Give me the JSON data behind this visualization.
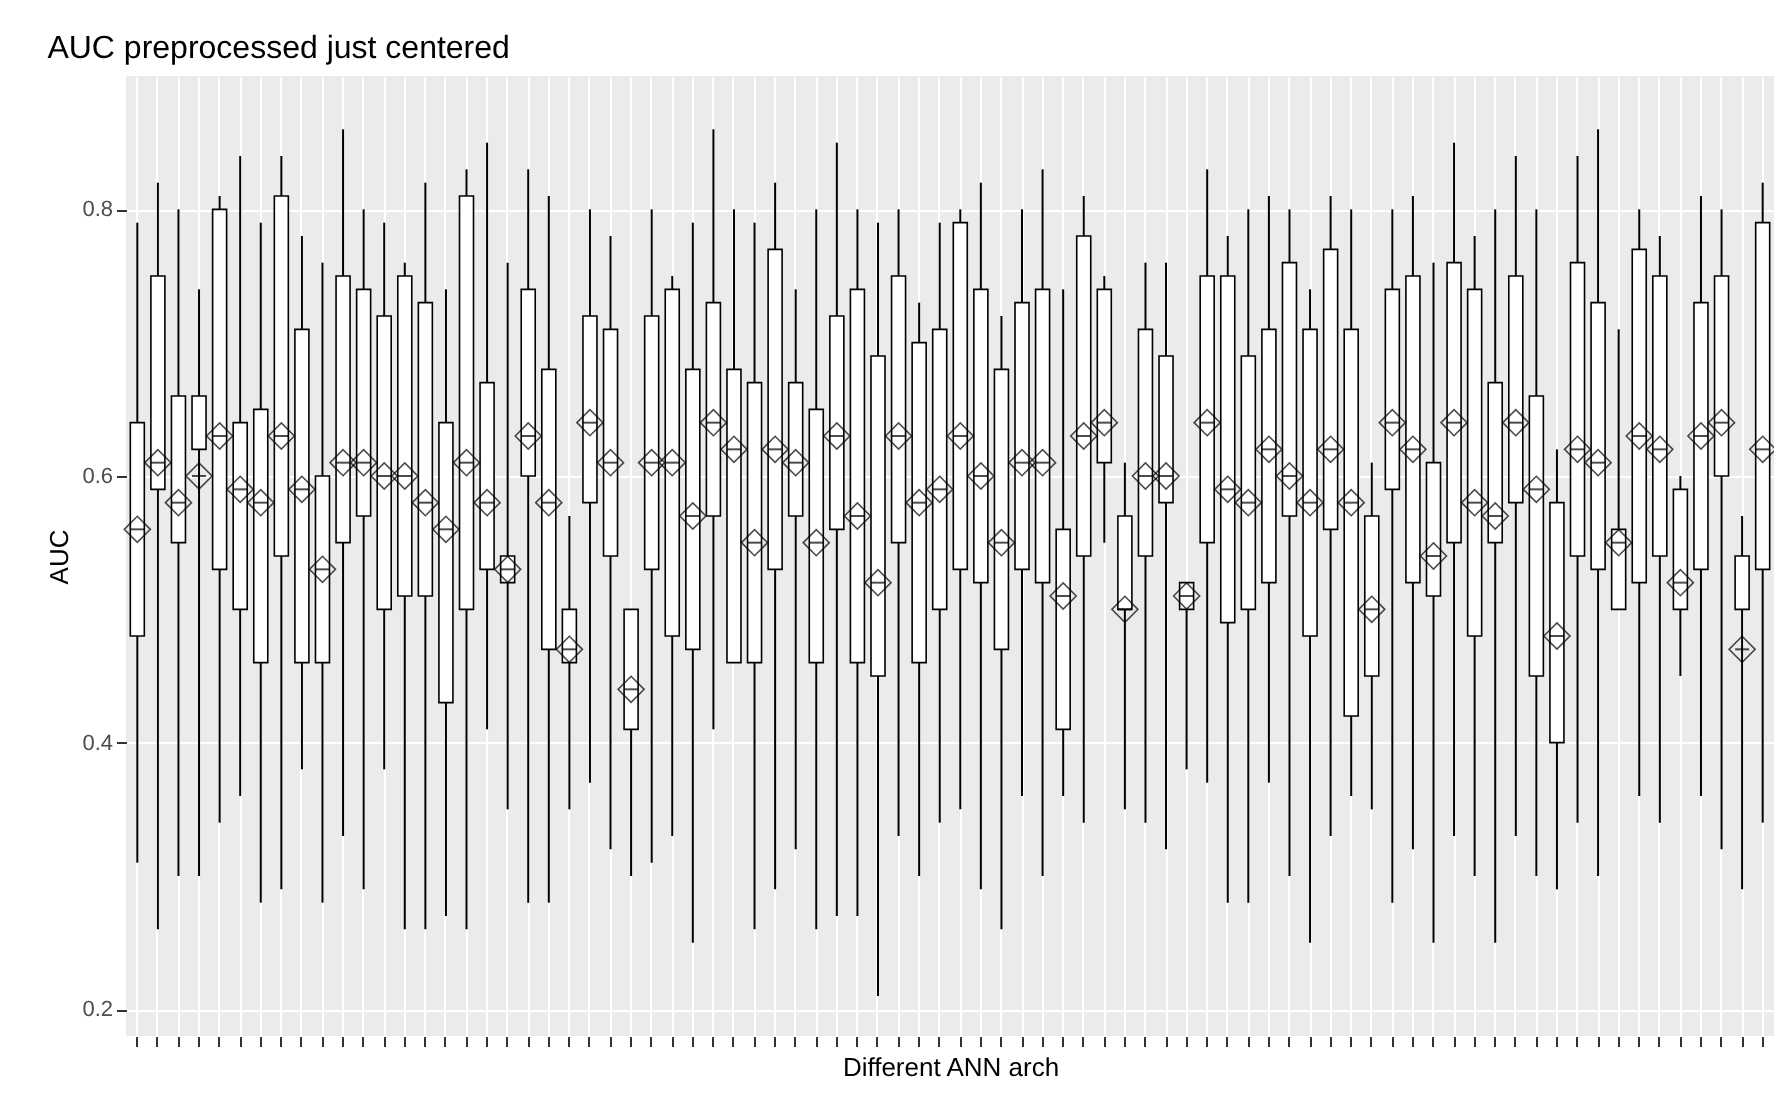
{
  "chart_data": {
    "type": "box",
    "title": "AUC preprocessed just centered",
    "xlabel": "Different ANN arch",
    "ylabel": "AUC",
    "categories": [
      null,
      null,
      null,
      null,
      null,
      null,
      null,
      null,
      null,
      null,
      null,
      null,
      null,
      null,
      null,
      null,
      null,
      null,
      null,
      null,
      null,
      null,
      null,
      null,
      null,
      null,
      null,
      null,
      null,
      null,
      null,
      null,
      null,
      null,
      null,
      null,
      null,
      null,
      null,
      null,
      null,
      null,
      null,
      null,
      null,
      null,
      null,
      null,
      null,
      null,
      null,
      null,
      null,
      null,
      null,
      null,
      null,
      null,
      null,
      null,
      null,
      null,
      null,
      null,
      null,
      null,
      null,
      null,
      null,
      null,
      null,
      null,
      null,
      null,
      null,
      null,
      null,
      null,
      null,
      null
    ],
    "color": "#000000",
    "ylim": [
      0.18,
      0.9
    ],
    "yticks": [
      0.2,
      0.4,
      0.6,
      0.8
    ],
    "grid": true,
    "marker": "diamond",
    "boxes": [
      {
        "low": 0.31,
        "q1": 0.48,
        "median": 0.56,
        "q3": 0.64,
        "high": 0.79,
        "mean": 0.56
      },
      {
        "low": 0.26,
        "q1": 0.59,
        "median": 0.61,
        "q3": 0.75,
        "high": 0.82,
        "mean": 0.61
      },
      {
        "low": 0.3,
        "q1": 0.55,
        "median": 0.58,
        "q3": 0.66,
        "high": 0.8,
        "mean": 0.58
      },
      {
        "low": 0.3,
        "q1": 0.62,
        "median": 0.6,
        "q3": 0.66,
        "high": 0.74,
        "mean": 0.6
      },
      {
        "low": 0.34,
        "q1": 0.53,
        "median": 0.63,
        "q3": 0.8,
        "high": 0.81,
        "mean": 0.63
      },
      {
        "low": 0.36,
        "q1": 0.5,
        "median": 0.59,
        "q3": 0.64,
        "high": 0.84,
        "mean": 0.59
      },
      {
        "low": 0.28,
        "q1": 0.46,
        "median": 0.58,
        "q3": 0.65,
        "high": 0.79,
        "mean": 0.58
      },
      {
        "low": 0.29,
        "q1": 0.54,
        "median": 0.63,
        "q3": 0.81,
        "high": 0.84,
        "mean": 0.63
      },
      {
        "low": 0.38,
        "q1": 0.46,
        "median": 0.59,
        "q3": 0.71,
        "high": 0.78,
        "mean": 0.59
      },
      {
        "low": 0.28,
        "q1": 0.46,
        "median": 0.53,
        "q3": 0.6,
        "high": 0.76,
        "mean": 0.53
      },
      {
        "low": 0.33,
        "q1": 0.55,
        "median": 0.61,
        "q3": 0.75,
        "high": 0.86,
        "mean": 0.61
      },
      {
        "low": 0.29,
        "q1": 0.57,
        "median": 0.61,
        "q3": 0.74,
        "high": 0.8,
        "mean": 0.61
      },
      {
        "low": 0.38,
        "q1": 0.5,
        "median": 0.6,
        "q3": 0.72,
        "high": 0.79,
        "mean": 0.6
      },
      {
        "low": 0.26,
        "q1": 0.51,
        "median": 0.6,
        "q3": 0.75,
        "high": 0.76,
        "mean": 0.6
      },
      {
        "low": 0.26,
        "q1": 0.51,
        "median": 0.58,
        "q3": 0.73,
        "high": 0.82,
        "mean": 0.58
      },
      {
        "low": 0.27,
        "q1": 0.43,
        "median": 0.56,
        "q3": 0.64,
        "high": 0.74,
        "mean": 0.56
      },
      {
        "low": 0.26,
        "q1": 0.5,
        "median": 0.61,
        "q3": 0.81,
        "high": 0.83,
        "mean": 0.61
      },
      {
        "low": 0.41,
        "q1": 0.53,
        "median": 0.58,
        "q3": 0.67,
        "high": 0.85,
        "mean": 0.58
      },
      {
        "low": 0.35,
        "q1": 0.52,
        "median": 0.53,
        "q3": 0.54,
        "high": 0.76,
        "mean": 0.53
      },
      {
        "low": 0.28,
        "q1": 0.6,
        "median": 0.63,
        "q3": 0.74,
        "high": 0.83,
        "mean": 0.63
      },
      {
        "low": 0.28,
        "q1": 0.47,
        "median": 0.58,
        "q3": 0.68,
        "high": 0.81,
        "mean": 0.58
      },
      {
        "low": 0.35,
        "q1": 0.46,
        "median": 0.47,
        "q3": 0.5,
        "high": 0.57,
        "mean": 0.47
      },
      {
        "low": 0.37,
        "q1": 0.58,
        "median": 0.64,
        "q3": 0.72,
        "high": 0.8,
        "mean": 0.64
      },
      {
        "low": 0.32,
        "q1": 0.54,
        "median": 0.61,
        "q3": 0.71,
        "high": 0.78,
        "mean": 0.61
      },
      {
        "low": 0.3,
        "q1": 0.41,
        "median": 0.44,
        "q3": 0.5,
        "high": 0.5,
        "mean": 0.44
      },
      {
        "low": 0.31,
        "q1": 0.53,
        "median": 0.61,
        "q3": 0.72,
        "high": 0.8,
        "mean": 0.61
      },
      {
        "low": 0.33,
        "q1": 0.48,
        "median": 0.61,
        "q3": 0.74,
        "high": 0.75,
        "mean": 0.61
      },
      {
        "low": 0.25,
        "q1": 0.47,
        "median": 0.57,
        "q3": 0.68,
        "high": 0.79,
        "mean": 0.57
      },
      {
        "low": 0.41,
        "q1": 0.57,
        "median": 0.64,
        "q3": 0.73,
        "high": 0.86,
        "mean": 0.64
      },
      {
        "low": 0.46,
        "q1": 0.46,
        "median": 0.62,
        "q3": 0.68,
        "high": 0.8,
        "mean": 0.62
      },
      {
        "low": 0.26,
        "q1": 0.46,
        "median": 0.55,
        "q3": 0.67,
        "high": 0.79,
        "mean": 0.55
      },
      {
        "low": 0.29,
        "q1": 0.53,
        "median": 0.62,
        "q3": 0.77,
        "high": 0.82,
        "mean": 0.62
      },
      {
        "low": 0.32,
        "q1": 0.57,
        "median": 0.61,
        "q3": 0.67,
        "high": 0.74,
        "mean": 0.61
      },
      {
        "low": 0.26,
        "q1": 0.46,
        "median": 0.55,
        "q3": 0.65,
        "high": 0.8,
        "mean": 0.55
      },
      {
        "low": 0.27,
        "q1": 0.56,
        "median": 0.63,
        "q3": 0.72,
        "high": 0.85,
        "mean": 0.63
      },
      {
        "low": 0.27,
        "q1": 0.46,
        "median": 0.57,
        "q3": 0.74,
        "high": 0.8,
        "mean": 0.57
      },
      {
        "low": 0.21,
        "q1": 0.45,
        "median": 0.52,
        "q3": 0.69,
        "high": 0.79,
        "mean": 0.52
      },
      {
        "low": 0.33,
        "q1": 0.55,
        "median": 0.63,
        "q3": 0.75,
        "high": 0.8,
        "mean": 0.63
      },
      {
        "low": 0.3,
        "q1": 0.46,
        "median": 0.58,
        "q3": 0.7,
        "high": 0.73,
        "mean": 0.58
      },
      {
        "low": 0.34,
        "q1": 0.5,
        "median": 0.59,
        "q3": 0.71,
        "high": 0.79,
        "mean": 0.59
      },
      {
        "low": 0.35,
        "q1": 0.53,
        "median": 0.63,
        "q3": 0.79,
        "high": 0.8,
        "mean": 0.63
      },
      {
        "low": 0.29,
        "q1": 0.52,
        "median": 0.6,
        "q3": 0.74,
        "high": 0.82,
        "mean": 0.6
      },
      {
        "low": 0.26,
        "q1": 0.47,
        "median": 0.55,
        "q3": 0.68,
        "high": 0.72,
        "mean": 0.55
      },
      {
        "low": 0.36,
        "q1": 0.53,
        "median": 0.61,
        "q3": 0.73,
        "high": 0.8,
        "mean": 0.61
      },
      {
        "low": 0.3,
        "q1": 0.52,
        "median": 0.61,
        "q3": 0.74,
        "high": 0.83,
        "mean": 0.61
      },
      {
        "low": 0.36,
        "q1": 0.41,
        "median": 0.51,
        "q3": 0.56,
        "high": 0.74,
        "mean": 0.51
      },
      {
        "low": 0.34,
        "q1": 0.54,
        "median": 0.63,
        "q3": 0.78,
        "high": 0.81,
        "mean": 0.63
      },
      {
        "low": 0.55,
        "q1": 0.61,
        "median": 0.64,
        "q3": 0.74,
        "high": 0.75,
        "mean": 0.64
      },
      {
        "low": 0.35,
        "q1": 0.5,
        "median": 0.5,
        "q3": 0.57,
        "high": 0.61,
        "mean": 0.5
      },
      {
        "low": 0.34,
        "q1": 0.54,
        "median": 0.6,
        "q3": 0.71,
        "high": 0.76,
        "mean": 0.6
      },
      {
        "low": 0.32,
        "q1": 0.58,
        "median": 0.6,
        "q3": 0.69,
        "high": 0.76,
        "mean": 0.6
      },
      {
        "low": 0.38,
        "q1": 0.5,
        "median": 0.51,
        "q3": 0.52,
        "high": 0.52,
        "mean": 0.51
      },
      {
        "low": 0.37,
        "q1": 0.55,
        "median": 0.64,
        "q3": 0.75,
        "high": 0.83,
        "mean": 0.64
      },
      {
        "low": 0.28,
        "q1": 0.49,
        "median": 0.59,
        "q3": 0.75,
        "high": 0.78,
        "mean": 0.59
      },
      {
        "low": 0.28,
        "q1": 0.5,
        "median": 0.58,
        "q3": 0.69,
        "high": 0.8,
        "mean": 0.58
      },
      {
        "low": 0.37,
        "q1": 0.52,
        "median": 0.62,
        "q3": 0.71,
        "high": 0.81,
        "mean": 0.62
      },
      {
        "low": 0.3,
        "q1": 0.57,
        "median": 0.6,
        "q3": 0.76,
        "high": 0.8,
        "mean": 0.6
      },
      {
        "low": 0.25,
        "q1": 0.48,
        "median": 0.58,
        "q3": 0.71,
        "high": 0.74,
        "mean": 0.58
      },
      {
        "low": 0.33,
        "q1": 0.56,
        "median": 0.62,
        "q3": 0.77,
        "high": 0.81,
        "mean": 0.62
      },
      {
        "low": 0.36,
        "q1": 0.42,
        "median": 0.58,
        "q3": 0.71,
        "high": 0.8,
        "mean": 0.58
      },
      {
        "low": 0.35,
        "q1": 0.45,
        "median": 0.5,
        "q3": 0.57,
        "high": 0.61,
        "mean": 0.5
      },
      {
        "low": 0.28,
        "q1": 0.59,
        "median": 0.64,
        "q3": 0.74,
        "high": 0.8,
        "mean": 0.64
      },
      {
        "low": 0.32,
        "q1": 0.52,
        "median": 0.62,
        "q3": 0.75,
        "high": 0.81,
        "mean": 0.62
      },
      {
        "low": 0.25,
        "q1": 0.51,
        "median": 0.54,
        "q3": 0.61,
        "high": 0.76,
        "mean": 0.54
      },
      {
        "low": 0.33,
        "q1": 0.55,
        "median": 0.64,
        "q3": 0.76,
        "high": 0.85,
        "mean": 0.64
      },
      {
        "low": 0.3,
        "q1": 0.48,
        "median": 0.58,
        "q3": 0.74,
        "high": 0.78,
        "mean": 0.58
      },
      {
        "low": 0.25,
        "q1": 0.55,
        "median": 0.57,
        "q3": 0.67,
        "high": 0.8,
        "mean": 0.57
      },
      {
        "low": 0.33,
        "q1": 0.58,
        "median": 0.64,
        "q3": 0.75,
        "high": 0.84,
        "mean": 0.64
      },
      {
        "low": 0.3,
        "q1": 0.45,
        "median": 0.59,
        "q3": 0.66,
        "high": 0.8,
        "mean": 0.59
      },
      {
        "low": 0.29,
        "q1": 0.4,
        "median": 0.48,
        "q3": 0.58,
        "high": 0.62,
        "mean": 0.48
      },
      {
        "low": 0.34,
        "q1": 0.54,
        "median": 0.62,
        "q3": 0.76,
        "high": 0.84,
        "mean": 0.62
      },
      {
        "low": 0.3,
        "q1": 0.53,
        "median": 0.61,
        "q3": 0.73,
        "high": 0.86,
        "mean": 0.61
      },
      {
        "low": 0.5,
        "q1": 0.5,
        "median": 0.55,
        "q3": 0.56,
        "high": 0.71,
        "mean": 0.55
      },
      {
        "low": 0.36,
        "q1": 0.52,
        "median": 0.63,
        "q3": 0.77,
        "high": 0.8,
        "mean": 0.63
      },
      {
        "low": 0.34,
        "q1": 0.54,
        "median": 0.62,
        "q3": 0.75,
        "high": 0.78,
        "mean": 0.62
      },
      {
        "low": 0.45,
        "q1": 0.5,
        "median": 0.52,
        "q3": 0.59,
        "high": 0.6,
        "mean": 0.52
      },
      {
        "low": 0.36,
        "q1": 0.53,
        "median": 0.63,
        "q3": 0.73,
        "high": 0.81,
        "mean": 0.63
      },
      {
        "low": 0.32,
        "q1": 0.6,
        "median": 0.64,
        "q3": 0.75,
        "high": 0.8,
        "mean": 0.64
      },
      {
        "low": 0.29,
        "q1": 0.5,
        "median": 0.47,
        "q3": 0.54,
        "high": 0.57,
        "mean": 0.47
      },
      {
        "low": 0.34,
        "q1": 0.53,
        "median": 0.62,
        "q3": 0.79,
        "high": 0.82,
        "mean": 0.62
      }
    ]
  }
}
